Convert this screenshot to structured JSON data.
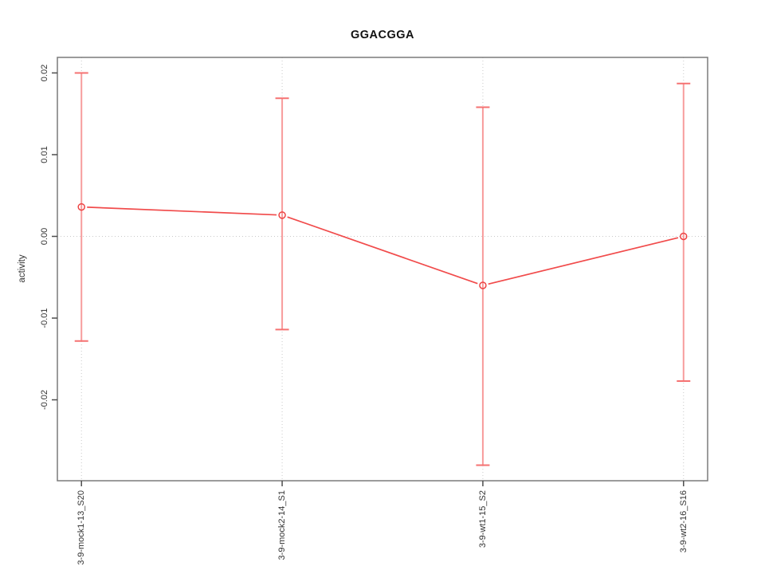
{
  "chart_data": {
    "type": "line",
    "title": "GGACGGA",
    "xlabel": "",
    "ylabel": "activity",
    "categories": [
      "3-9-mock1-13_S20",
      "3-9-mock2-14_S1",
      "3-9-wt1-15_S2",
      "3-9-wt2-16_S16"
    ],
    "series": [
      {
        "name": "activity",
        "values": [
          0.0036,
          0.0026,
          -0.006,
          0.0
        ],
        "error_low": [
          -0.0128,
          -0.0114,
          -0.028,
          -0.0177
        ],
        "error_high": [
          0.02,
          0.0169,
          0.0158,
          0.0187
        ],
        "marker": "open-circle",
        "line_type": "points-with-gapped-segments"
      }
    ],
    "ylim": [
      -0.0299,
      0.0219
    ],
    "yticks": [
      {
        "value": 0.02,
        "label": "0.02"
      },
      {
        "value": 0.01,
        "label": "0.01"
      },
      {
        "value": 0.0,
        "label": "0.00"
      },
      {
        "value": -0.01,
        "label": "-0.01"
      },
      {
        "value": -0.02,
        "label": "-0.02"
      }
    ],
    "grid": {
      "vertical_at_categories": true,
      "horizontal_at_values": [
        0
      ],
      "style": "dotted"
    },
    "legend_position": "none",
    "colors": {
      "line": "#f14b4b",
      "error_bar": "#f79c9c",
      "error_cap": "#f57272",
      "marker_stroke": "#ee4444",
      "grid": "#c9c9c9",
      "box": "#7a7a7a",
      "tick": "#4d4d4d",
      "tick_label": "#333333",
      "title": "#111111",
      "background": "#ffffff"
    }
  }
}
